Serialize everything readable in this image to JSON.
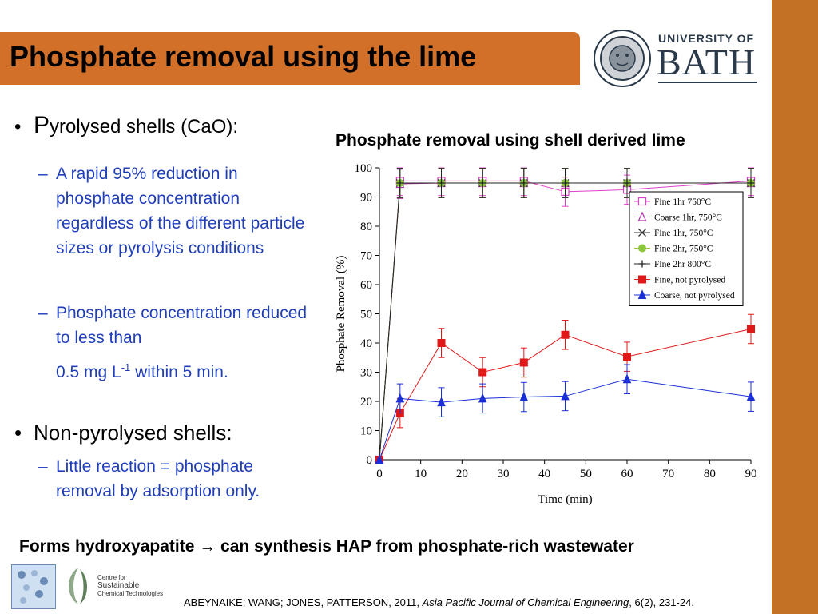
{
  "slide": {
    "title": "Phosphate removal using the lime",
    "logo": {
      "line1": "UNIVERSITY OF",
      "line2": "BATH"
    },
    "bullets": {
      "b1_cap": "P",
      "b1_rest": "yrolysed shells (CaO):",
      "sub1": "A rapid 95% reduction in phosphate concentration regardless of the different particle sizes or pyrolysis conditions",
      "sub2_a": "Phosphate concentration reduced to less than",
      "sub2_b": "0.5 mg L",
      "sub2_sup": "-1",
      "sub2_c": " within 5 min.",
      "b2": "Non-pyrolysed shells:",
      "sub3": "Little reaction = phosphate removal by adsorption only."
    },
    "bottom_line": "Forms hydroxyapatite → can synthesis HAP from phosphate-rich wastewater",
    "footer_logo": {
      "line1": "Centre for",
      "line2": "Sustainable",
      "line3": "Chemical Technologies"
    },
    "citation": {
      "authors": "ABEYNAIKE; WANG; JONES, PATTERSON, 2011, ",
      "journal": "Asia Pacific Journal of Chemical Engineering",
      "rest": ", 6(2), 231-24."
    }
  },
  "chart_data": {
    "type": "line",
    "title": "Phosphate removal using shell derived lime",
    "xlabel": "Time (min)",
    "ylabel": "Phosphate Removal (%)",
    "xlim": [
      0,
      90
    ],
    "ylim": [
      0,
      100
    ],
    "xticks": [
      0,
      10,
      20,
      30,
      40,
      50,
      60,
      70,
      80,
      90
    ],
    "yticks": [
      0,
      10,
      20,
      30,
      40,
      50,
      60,
      70,
      80,
      90,
      100
    ],
    "grid": false,
    "legend_position": "top-right",
    "x": [
      0,
      5,
      15,
      25,
      35,
      45,
      60,
      90
    ],
    "series": [
      {
        "name": "Fine 1hr 750°C",
        "marker": "square-open",
        "color": "#e040c8",
        "values": [
          0,
          95.5,
          95.5,
          95.5,
          95.5,
          91.8,
          92.5,
          95.5
        ],
        "error": [
          0,
          5,
          5,
          5,
          5,
          5,
          5,
          5
        ]
      },
      {
        "name": "Coarse 1hr, 750°C",
        "marker": "triangle-open",
        "color": "#b030a8",
        "values": [
          0,
          94.5,
          94.8,
          94.8,
          94.8,
          94.8,
          94.8,
          94.8
        ],
        "error": [
          0,
          5,
          5,
          5,
          5,
          5,
          5,
          5
        ]
      },
      {
        "name": "Fine 1hr, 750°C",
        "marker": "x",
        "color": "#333333",
        "values": [
          0,
          94.8,
          94.8,
          94.8,
          94.8,
          94.8,
          94.8,
          94.8
        ],
        "error": [
          0,
          5,
          5,
          5,
          5,
          5,
          5,
          5
        ]
      },
      {
        "name": "Fine 2hr, 750°C",
        "marker": "circle",
        "color": "#8cc63e",
        "values": [
          0,
          94.8,
          94.8,
          94.8,
          94.8,
          94.8,
          94.8,
          94.8
        ],
        "error": [
          0,
          5,
          5,
          5,
          5,
          5,
          5,
          5
        ]
      },
      {
        "name": "Fine 2hr 800°C",
        "marker": "plus",
        "color": "#222222",
        "values": [
          0,
          94.8,
          94.8,
          94.8,
          94.8,
          94.8,
          94.8,
          94.8
        ],
        "error": [
          0,
          5,
          5,
          5,
          5,
          5,
          5,
          5
        ]
      },
      {
        "name": "Fine, not pyrolysed",
        "marker": "square",
        "color": "#e01818",
        "values": [
          0,
          16,
          40,
          30,
          33.3,
          42.8,
          35.3,
          44.8
        ],
        "error": [
          0,
          5,
          5,
          5,
          5,
          5,
          5,
          5
        ]
      },
      {
        "name": "Coarse, not pyrolysed",
        "marker": "triangle",
        "color": "#1a2fd6",
        "values": [
          0,
          21,
          19.7,
          21,
          21.5,
          21.8,
          27.6,
          21.6
        ],
        "error": [
          0,
          5,
          5,
          5,
          5,
          5,
          5,
          5
        ]
      }
    ]
  }
}
